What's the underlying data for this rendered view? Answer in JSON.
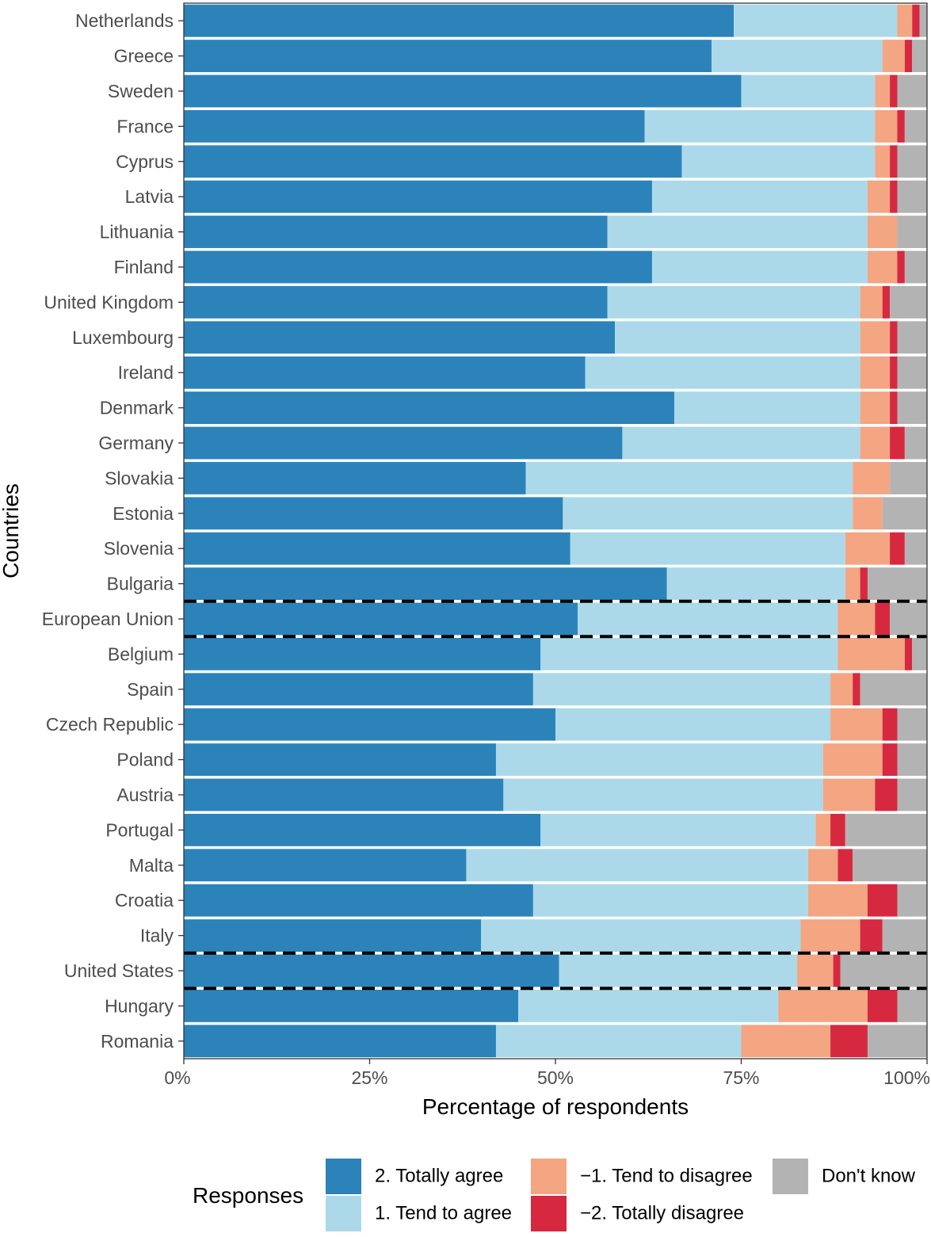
{
  "chart_data": {
    "type": "bar",
    "orientation": "horizontal",
    "stacked": true,
    "xlabel": "Percentage of respondents",
    "ylabel": "Countries",
    "xlim": [
      0,
      100
    ],
    "x_ticks": [
      "0%",
      "25%",
      "50%",
      "75%",
      "100%"
    ],
    "categories": [
      "Netherlands",
      "Greece",
      "Sweden",
      "France",
      "Cyprus",
      "Latvia",
      "Lithuania",
      "Finland",
      "United Kingdom",
      "Luxembourg",
      "Ireland",
      "Denmark",
      "Germany",
      "Slovakia",
      "Estonia",
      "Slovenia",
      "Bulgaria",
      "European Union",
      "Belgium",
      "Spain",
      "Czech Republic",
      "Poland",
      "Austria",
      "Portugal",
      "Malta",
      "Croatia",
      "Italy",
      "United States",
      "Hungary",
      "Romania"
    ],
    "series": [
      {
        "name": "2. Totally agree",
        "color": "#2b83ba",
        "values": [
          74,
          71,
          75,
          62,
          67,
          63,
          57,
          63,
          57,
          58,
          54,
          66,
          59,
          46,
          51,
          52,
          65,
          53,
          48,
          47,
          50,
          42,
          43,
          48,
          38,
          47,
          40,
          52,
          45,
          42
        ]
      },
      {
        "name": "1. Tend to agree",
        "color": "#abd9e9",
        "values": [
          22,
          23,
          18,
          31,
          26,
          29,
          35,
          29,
          34,
          33,
          37,
          25,
          32,
          44,
          39,
          37,
          24,
          35,
          40,
          40,
          37,
          44,
          43,
          37,
          46,
          37,
          43,
          33,
          35,
          33
        ]
      },
      {
        "name": "−1. Tend to disagree",
        "color": "#f4a582",
        "values": [
          2,
          3,
          2,
          3,
          2,
          3,
          4,
          4,
          3,
          4,
          4,
          4,
          4,
          5,
          4,
          6,
          2,
          5,
          9,
          3,
          7,
          8,
          7,
          2,
          4,
          8,
          8,
          5,
          12,
          12
        ]
      },
      {
        "name": "−2. Totally disagree",
        "color": "#d6293f",
        "values": [
          1,
          1,
          1,
          1,
          1,
          1,
          0,
          1,
          1,
          1,
          1,
          1,
          2,
          0,
          0,
          2,
          1,
          2,
          1,
          1,
          2,
          2,
          3,
          2,
          2,
          4,
          3,
          1,
          4,
          5
        ]
      },
      {
        "name": "Don't know",
        "color": "#b3b3b3",
        "values": [
          1,
          2,
          4,
          3,
          4,
          4,
          4,
          3,
          5,
          4,
          4,
          4,
          3,
          5,
          6,
          3,
          8,
          5,
          2,
          9,
          4,
          4,
          4,
          11,
          10,
          4,
          6,
          12,
          4,
          8
        ]
      }
    ],
    "separators_after": [
      "Bulgaria",
      "European Union",
      "Italy",
      "United States"
    ],
    "legend_title": "Responses",
    "legend_position": "bottom",
    "grid": false
  }
}
